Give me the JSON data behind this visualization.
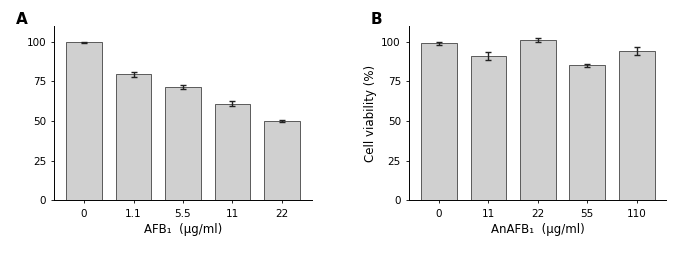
{
  "panel_A": {
    "label": "A",
    "categories": [
      "0",
      "1.1",
      "5.5",
      "11",
      "22"
    ],
    "values": [
      99.5,
      79.5,
      71.5,
      61.0,
      50.0
    ],
    "errors": [
      0.5,
      1.5,
      1.2,
      1.8,
      0.8
    ],
    "xlabel": "AFB₁  (μg/ml)",
    "ylabel": "",
    "bar_color": "#d0d0d0",
    "bar_edgecolor": "#444444",
    "ylim": [
      0,
      110
    ],
    "yticks": [
      0,
      25,
      50,
      75,
      100
    ]
  },
  "panel_B": {
    "label": "B",
    "categories": [
      "0",
      "11",
      "22",
      "55",
      "110"
    ],
    "values": [
      99.0,
      91.0,
      101.0,
      85.0,
      94.0
    ],
    "errors": [
      1.0,
      2.5,
      1.5,
      0.8,
      2.5
    ],
    "xlabel": "AnAFB₁  (μg/ml)",
    "ylabel": "Cell viability (%)",
    "bar_color": "#d0d0d0",
    "bar_edgecolor": "#444444",
    "ylim": [
      0,
      110
    ],
    "yticks": [
      0,
      25,
      50,
      75,
      100
    ]
  },
  "figure": {
    "bg_color": "#ffffff",
    "bar_width": 0.72,
    "capsize": 2.5,
    "error_color": "#222222",
    "error_linewidth": 1.0,
    "label_fontsize": 10,
    "tick_fontsize": 7.5,
    "xlabel_fontsize": 8.5,
    "ylabel_fontsize": 8.5,
    "panel_label_fontsize": 11
  }
}
